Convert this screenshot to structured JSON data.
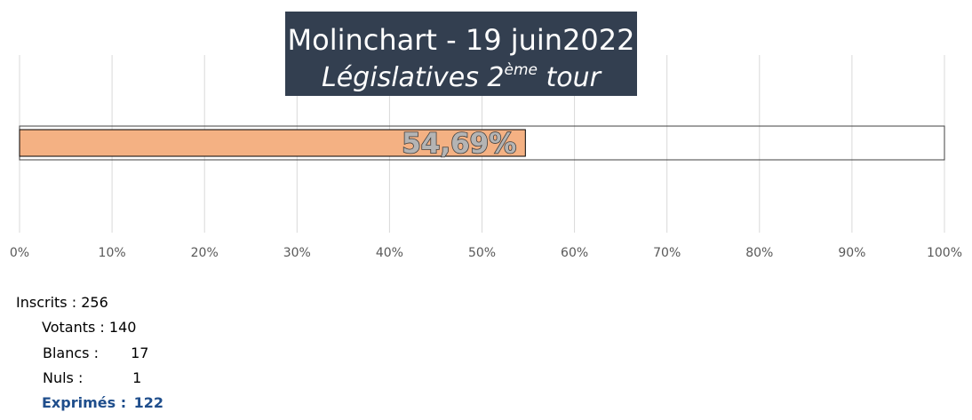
{
  "chart_data": {
    "type": "bar",
    "orientation": "horizontal",
    "title_line1": "Molinchart - 19 juin2022",
    "title_line2_main": "Législatives 2",
    "title_line2_sup": "ème",
    "title_line2_end": " tour",
    "value": 54.69,
    "data_label": "54,69%",
    "xlim": [
      0,
      100
    ],
    "x_ticks": [
      "0%",
      "10%",
      "20%",
      "30%",
      "40%",
      "50%",
      "60%",
      "70%",
      "80%",
      "90%",
      "100%"
    ],
    "grid": true,
    "colors": {
      "bar_fill": "#f4b183",
      "bar_outline": "#000000",
      "title_bg": "#333f50",
      "title_text": "#ffffff",
      "gridline": "#d9d9d9",
      "tick_text": "#595959",
      "label_fill": "#b4b4b4",
      "label_stroke": "#404040"
    }
  },
  "stats": {
    "inscrits_label": "Inscrits :",
    "inscrits_value": "256",
    "votants_label": "Votants :",
    "votants_value": "140",
    "blancs_label": "Blancs :",
    "blancs_value": "17",
    "nuls_label": "Nuls :",
    "nuls_value": "1",
    "exprimes_label": "Exprimés :",
    "exprimes_value": "122",
    "exprimes_color": "#1f4e8c"
  }
}
